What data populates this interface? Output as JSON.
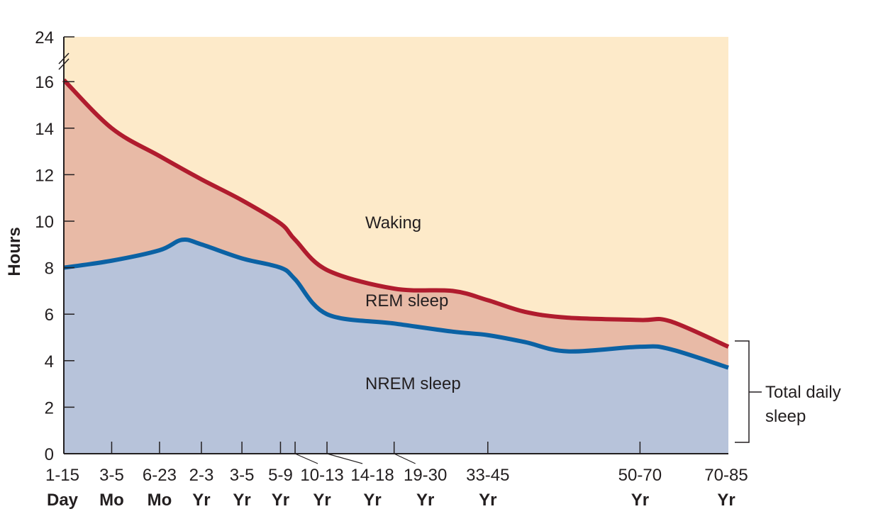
{
  "chart_data": {
    "type": "area",
    "title": "",
    "ylabel": "Hours",
    "xlabel": "",
    "ylim": [
      0,
      24
    ],
    "y_axis_break": [
      16,
      24
    ],
    "yticks": [
      0,
      2,
      4,
      6,
      8,
      10,
      12,
      14,
      16,
      24
    ],
    "x_scale_note": "ordinal age axis, positions in arbitrary units 0-100",
    "xlim": [
      0,
      100
    ],
    "categories": [
      {
        "pos": 0,
        "top": "1-15",
        "bottom": "Day"
      },
      {
        "pos": 7.2,
        "top": "3-5",
        "bottom": "Mo"
      },
      {
        "pos": 14.4,
        "top": "6-23",
        "bottom": "Mo"
      },
      {
        "pos": 20.7,
        "top": "2-3",
        "bottom": "Yr"
      },
      {
        "pos": 26.8,
        "top": "3-5",
        "bottom": "Yr"
      },
      {
        "pos": 32.6,
        "top": "5-9",
        "bottom": "Yr"
      },
      {
        "pos": 34.8,
        "top": "10-13",
        "bottom": "Yr",
        "leader": true
      },
      {
        "pos": 39.6,
        "top": "14-18",
        "bottom": "Yr",
        "leader": true
      },
      {
        "pos": 49.7,
        "top": "19-30",
        "bottom": "Yr",
        "leader": true
      },
      {
        "pos": 63.8,
        "top": "33-45",
        "bottom": "Yr"
      },
      {
        "pos": 86.7,
        "top": "50-70",
        "bottom": "Yr"
      },
      {
        "pos": 100,
        "top": "70-85",
        "bottom": "Yr"
      }
    ],
    "series": [
      {
        "name": "Total daily sleep (REM + NREM)",
        "color": "#b01c2e",
        "x": [
          0,
          7.2,
          14.4,
          20.7,
          26.8,
          32.6,
          34.8,
          39.6,
          49.7,
          58.5,
          63.8,
          69.4,
          75.8,
          86.7,
          91.2,
          100
        ],
        "y": [
          16.3,
          14.0,
          12.8,
          11.8,
          10.9,
          9.9,
          9.2,
          7.9,
          7.1,
          7.0,
          6.6,
          6.1,
          5.85,
          5.75,
          5.7,
          4.6
        ]
      },
      {
        "name": "NREM sleep",
        "color": "#0b62a4",
        "x": [
          0,
          7.2,
          14.4,
          17.8,
          20.7,
          26.8,
          32.6,
          34.8,
          39.6,
          49.7,
          58.5,
          63.8,
          69.4,
          75.8,
          86.7,
          91.2,
          100
        ],
        "y": [
          8.0,
          8.3,
          8.75,
          9.2,
          9.0,
          8.4,
          8.0,
          7.5,
          6.0,
          5.6,
          5.25,
          5.1,
          4.8,
          4.4,
          4.6,
          4.5,
          3.7
        ]
      }
    ],
    "regions": {
      "waking": {
        "label": "Waking",
        "color": "#fdeac9"
      },
      "rem": {
        "label": "REM sleep",
        "color": "#e8baa6"
      },
      "nrem": {
        "label": "NREM sleep",
        "color": "#b7c3da"
      }
    },
    "annotation": {
      "line1": "Total daily",
      "line2": "sleep"
    }
  }
}
